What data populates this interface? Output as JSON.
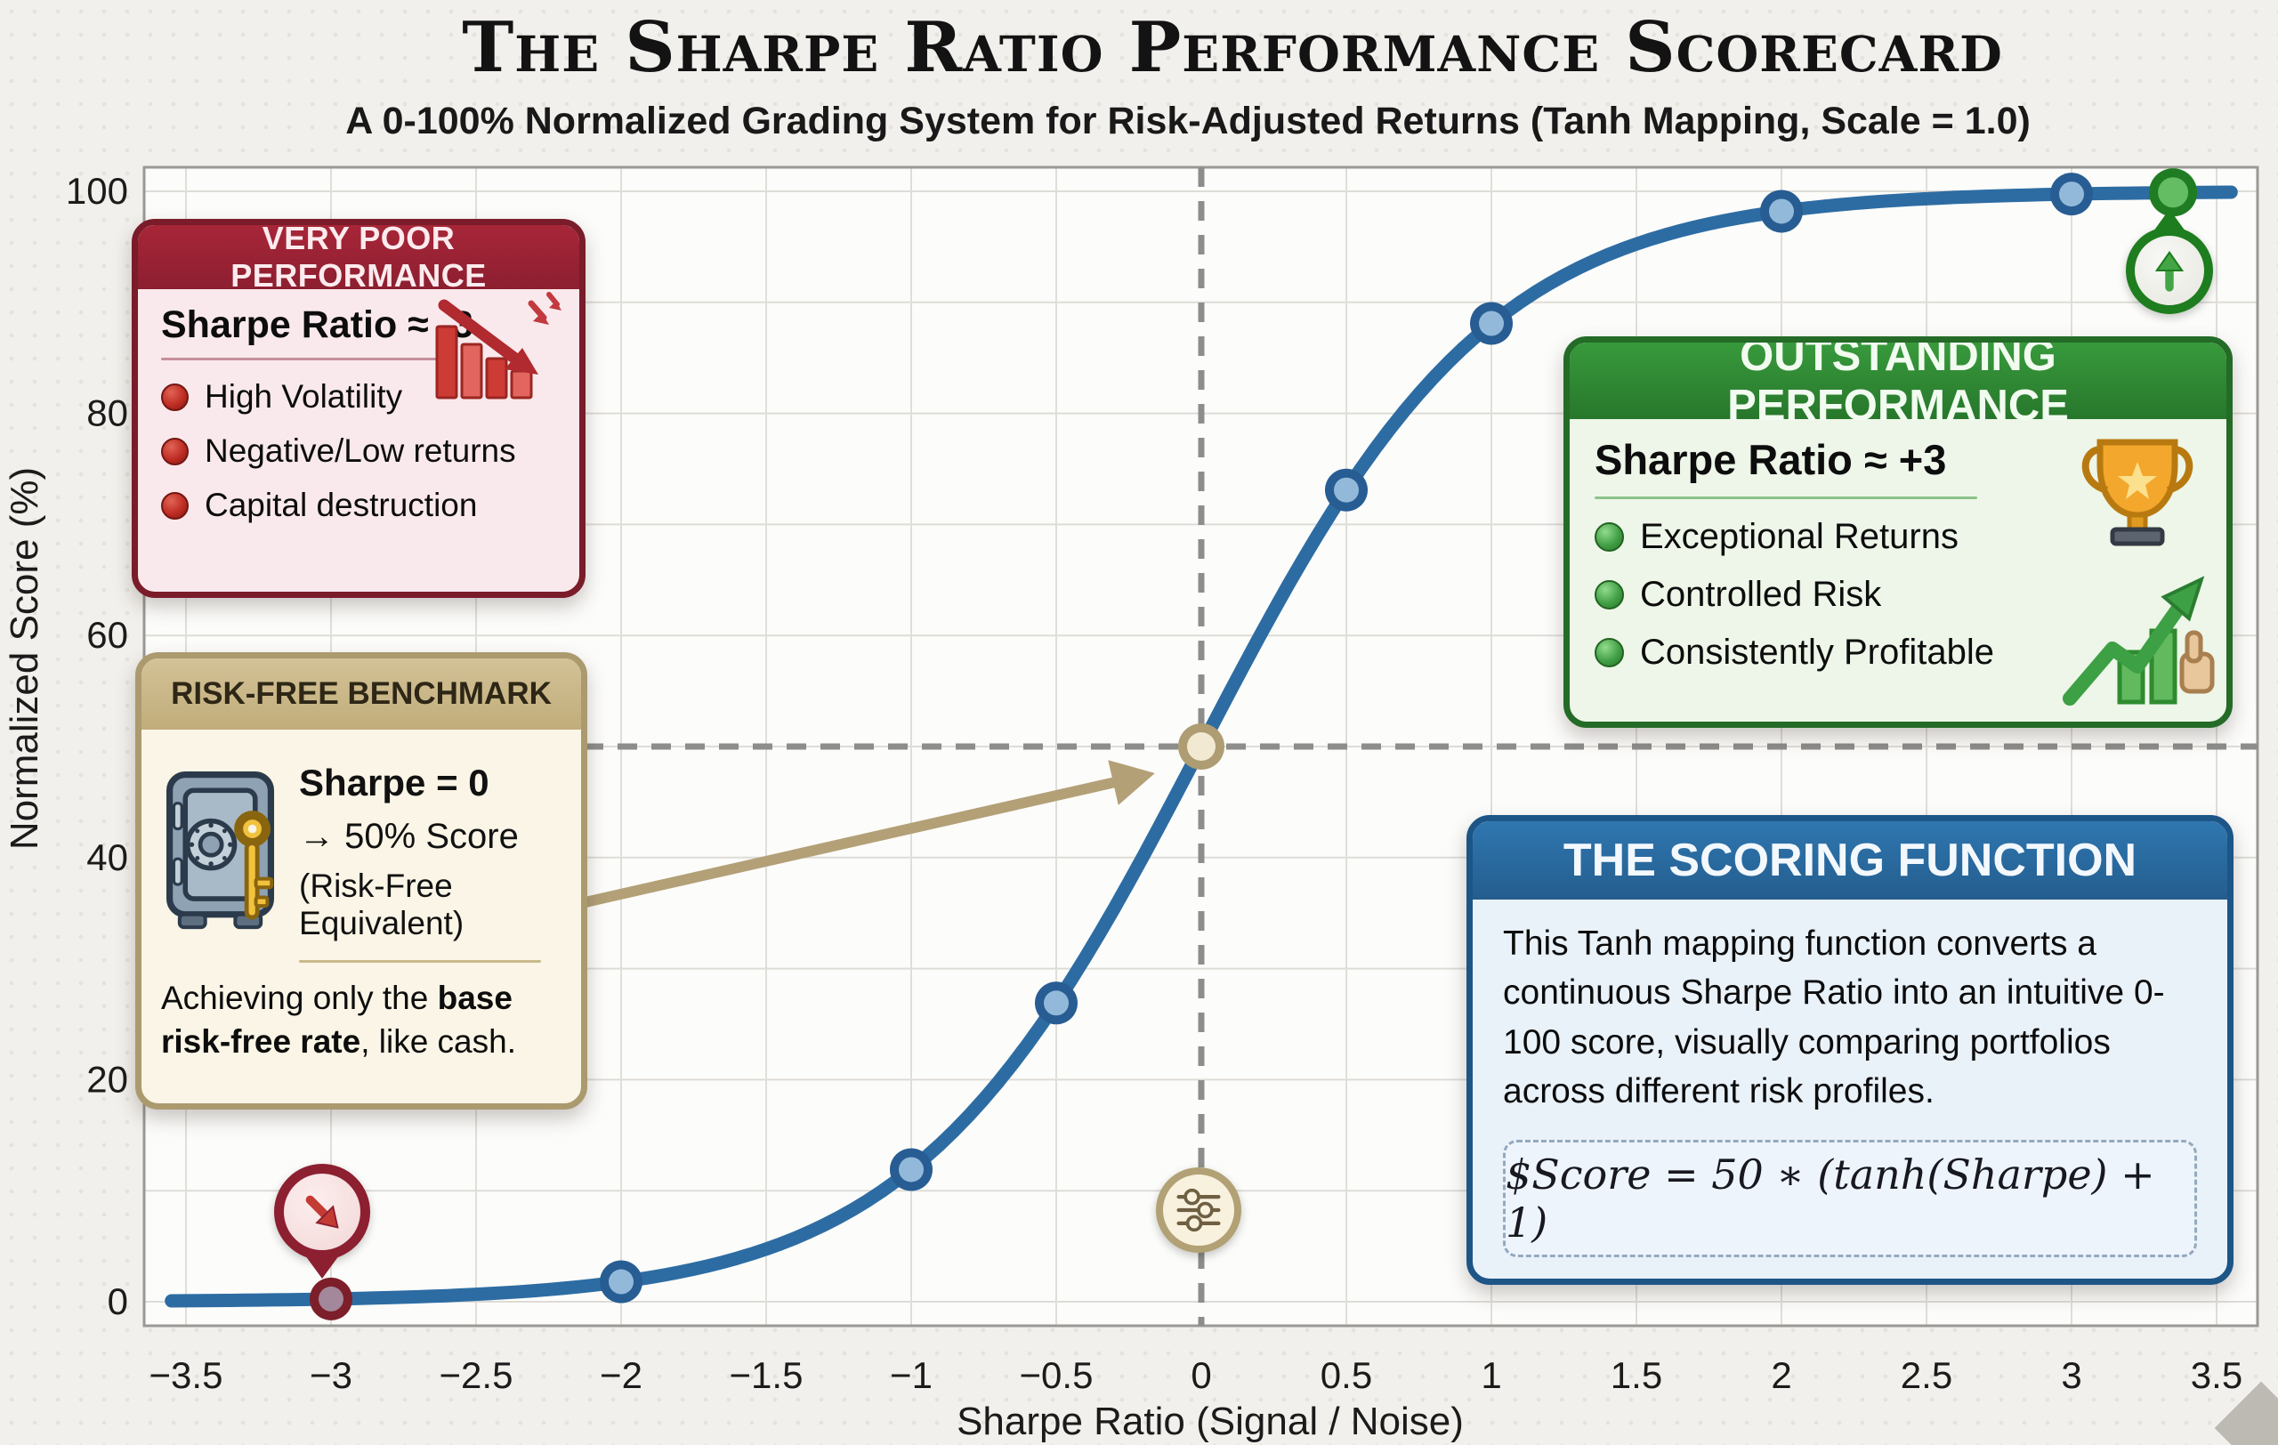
{
  "title": "The Sharpe Ratio Performance Scorecard",
  "subtitle": "A 0-100% Normalized Grading System for Risk-Adjusted Returns (Tanh Mapping, Scale = 1.0)",
  "chart_data": {
    "type": "line",
    "title": "The Sharpe Ratio Performance Scorecard",
    "xlabel": "Sharpe Ratio (Signal / Noise)",
    "ylabel": "Normalized Score (%)",
    "xlim": [
      -3.64,
      3.64
    ],
    "ylim": [
      -2,
      102
    ],
    "grid": {
      "x_step": 0.5,
      "y_step": 10,
      "visible": true
    },
    "x_tick_values": [
      -3.5,
      -3,
      -2.5,
      -2,
      -1.5,
      -1,
      -0.5,
      0,
      0.5,
      1,
      1.5,
      2,
      2.5,
      3,
      3.5
    ],
    "x_tick_labels": [
      "−3.5",
      "−3",
      "−2.5",
      "−2",
      "−1.5",
      "−1",
      "−0.5",
      "0",
      "0.5",
      "1",
      "1.5",
      "2",
      "2.5",
      "3",
      "3.5"
    ],
    "y_tick_values": [
      0,
      20,
      40,
      60,
      80,
      100
    ],
    "y_tick_labels": [
      "0",
      "20",
      "40",
      "60",
      "80",
      "100"
    ],
    "curve": {
      "name": "Tanh score mapping",
      "formula": "score = 50 * (tanh(sharpe) + 1)",
      "scale": 1.0,
      "x_range": [
        -3.55,
        3.55
      ],
      "color": "#2d6ca3"
    },
    "reference_lines": {
      "vline_at_sharpe": 0,
      "hline_at_score": 50,
      "color": "#8d8d8b",
      "style": "dashed"
    },
    "markers": [
      {
        "sharpe": -3,
        "score": 0.25,
        "kind": "very_poor"
      },
      {
        "sharpe": -2,
        "score": 1.8,
        "kind": "point"
      },
      {
        "sharpe": -1,
        "score": 11.9,
        "kind": "point"
      },
      {
        "sharpe": -0.5,
        "score": 26.9,
        "kind": "point"
      },
      {
        "sharpe": 0,
        "score": 50,
        "kind": "benchmark"
      },
      {
        "sharpe": 0.5,
        "score": 73.1,
        "kind": "point"
      },
      {
        "sharpe": 1,
        "score": 88.1,
        "kind": "point"
      },
      {
        "sharpe": 2,
        "score": 98.2,
        "kind": "point"
      },
      {
        "sharpe": 3,
        "score": 99.75,
        "kind": "point"
      },
      {
        "sharpe": 3.35,
        "score": 99.9,
        "kind": "outstanding"
      }
    ],
    "marker_styles": {
      "point": {
        "ring": "#275d93",
        "fill": "#93b9da",
        "r": 24
      },
      "very_poor": {
        "ring": "#7c1f2a",
        "fill": "#a3879a",
        "r": 24
      },
      "benchmark": {
        "ring": "#ae9c72",
        "fill": "#f2e9d3",
        "r": 26
      },
      "outstanding": {
        "ring": "#1f7c22",
        "fill": "#64bd63",
        "r": 27
      }
    },
    "annotation_arrow": {
      "from": [
        -2.12,
        36
      ],
      "to": [
        -0.16,
        47.6
      ],
      "color": "#b3a077"
    }
  },
  "callouts": {
    "very_poor": {
      "header": "VERY POOR PERFORMANCE",
      "title": "Sharpe Ratio ≈ -3",
      "bullets": [
        "High Volatility",
        "Negative/Low returns",
        "Capital destruction"
      ]
    },
    "risk_free": {
      "header": "RISK-FREE BENCHMARK",
      "line1": "Sharpe = 0",
      "line2": "→ 50% Score",
      "line3": "(Risk-Free Equivalent)",
      "note_prefix": "Achieving only the ",
      "note_bold": "base risk-free rate",
      "note_suffix": ", like cash."
    },
    "outstanding": {
      "header": "OUTSTANDING PERFORMANCE",
      "title": "Sharpe Ratio ≈ +3",
      "bullets": [
        "Exceptional Returns",
        "Controlled Risk",
        "Consistently Profitable"
      ]
    },
    "scoring": {
      "header": "THE SCORING FUNCTION",
      "body": "This Tanh mapping function converts a continuous Sharpe Ratio into an intuitive 0-100 score, visually comparing portfolios across different risk profiles.",
      "formula": "$Score = 50 ∗ (tanh(Sharpe) + 1)"
    }
  },
  "colors": {
    "curve": "#2d6ca3",
    "very_poor": "#8c1f30",
    "benchmark": "#b3a077",
    "outstanding": "#2e8b2e",
    "scoring": "#29679c"
  }
}
